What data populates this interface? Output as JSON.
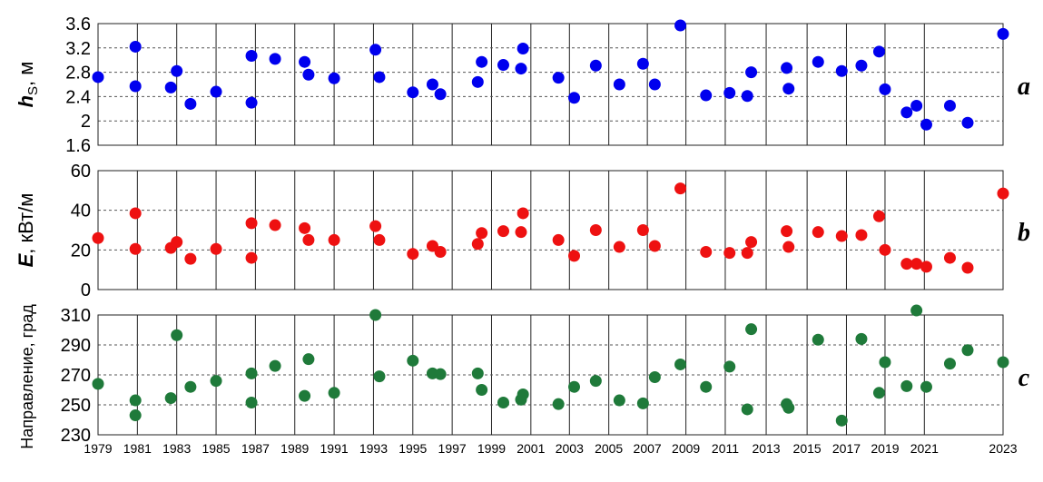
{
  "chart_data": [
    {
      "type": "scatter",
      "panel_letter": "a",
      "ylabel_main": "h",
      "ylabel_sub": "S",
      "ylabel_unit": ", м",
      "ylim": [
        1.6,
        3.6
      ],
      "yticks": [
        1.6,
        2,
        2.4,
        2.8,
        3.2,
        3.6
      ],
      "ytick_labels": [
        "1.6",
        "2",
        "2.4",
        "2.8",
        "3.2",
        "3.6"
      ],
      "color": "#0000ee",
      "points": [
        {
          "x": 1979.0,
          "y": 2.72
        },
        {
          "x": 1980.9,
          "y": 2.57
        },
        {
          "x": 1980.9,
          "y": 3.22
        },
        {
          "x": 1982.7,
          "y": 2.55
        },
        {
          "x": 1983.0,
          "y": 2.82
        },
        {
          "x": 1983.7,
          "y": 2.28
        },
        {
          "x": 1985.0,
          "y": 2.48
        },
        {
          "x": 1986.8,
          "y": 3.07
        },
        {
          "x": 1986.8,
          "y": 2.3
        },
        {
          "x": 1988.0,
          "y": 3.02
        },
        {
          "x": 1989.5,
          "y": 2.97
        },
        {
          "x": 1989.7,
          "y": 2.76
        },
        {
          "x": 1991.0,
          "y": 2.7
        },
        {
          "x": 1993.1,
          "y": 3.17
        },
        {
          "x": 1993.3,
          "y": 2.72
        },
        {
          "x": 1995.0,
          "y": 2.47
        },
        {
          "x": 1996.0,
          "y": 2.6
        },
        {
          "x": 1996.4,
          "y": 2.44
        },
        {
          "x": 1998.3,
          "y": 2.64
        },
        {
          "x": 1998.5,
          "y": 2.97
        },
        {
          "x": 1999.6,
          "y": 2.92
        },
        {
          "x": 2000.5,
          "y": 2.86
        },
        {
          "x": 2000.6,
          "y": 3.19
        },
        {
          "x": 2002.4,
          "y": 2.71
        },
        {
          "x": 2003.2,
          "y": 2.38
        },
        {
          "x": 2004.3,
          "y": 2.91
        },
        {
          "x": 2005.5,
          "y": 2.6
        },
        {
          "x": 2006.7,
          "y": 2.94
        },
        {
          "x": 2007.3,
          "y": 2.6
        },
        {
          "x": 2008.6,
          "y": 3.57
        },
        {
          "x": 2009.9,
          "y": 2.42
        },
        {
          "x": 2011.1,
          "y": 2.46
        },
        {
          "x": 2012.0,
          "y": 2.41
        },
        {
          "x": 2012.2,
          "y": 2.8
        },
        {
          "x": 2014.0,
          "y": 2.87
        },
        {
          "x": 2014.1,
          "y": 2.53
        },
        {
          "x": 2015.6,
          "y": 2.97
        },
        {
          "x": 2016.8,
          "y": 2.82
        },
        {
          "x": 2017.8,
          "y": 2.91
        },
        {
          "x": 2018.7,
          "y": 3.14
        },
        {
          "x": 2019.0,
          "y": 2.52
        },
        {
          "x": 2020.1,
          "y": 2.14
        },
        {
          "x": 2020.6,
          "y": 2.25
        },
        {
          "x": 2021.1,
          "y": 1.94
        },
        {
          "x": 2022.3,
          "y": 2.25
        },
        {
          "x": 2023.2,
          "y": 1.97
        },
        {
          "x": 2025.0,
          "y": 3.43
        }
      ]
    },
    {
      "type": "scatter",
      "panel_letter": "b",
      "ylabel_main": "E",
      "ylabel_unit": ", кВт/м",
      "ylim": [
        0,
        60
      ],
      "yticks": [
        0,
        20,
        40,
        60
      ],
      "ytick_labels": [
        "0",
        "20",
        "40",
        "60"
      ],
      "color": "#ee1111",
      "points": [
        {
          "x": 1979.0,
          "y": 26
        },
        {
          "x": 1980.9,
          "y": 20.5
        },
        {
          "x": 1980.9,
          "y": 38.5
        },
        {
          "x": 1982.7,
          "y": 21
        },
        {
          "x": 1983.0,
          "y": 24
        },
        {
          "x": 1983.7,
          "y": 15.5
        },
        {
          "x": 1985.0,
          "y": 20.5
        },
        {
          "x": 1986.8,
          "y": 33.5
        },
        {
          "x": 1986.8,
          "y": 16
        },
        {
          "x": 1988.0,
          "y": 32.5
        },
        {
          "x": 1989.5,
          "y": 31
        },
        {
          "x": 1989.7,
          "y": 25
        },
        {
          "x": 1991.0,
          "y": 25
        },
        {
          "x": 1993.1,
          "y": 32
        },
        {
          "x": 1993.3,
          "y": 25
        },
        {
          "x": 1995.0,
          "y": 18
        },
        {
          "x": 1996.0,
          "y": 22
        },
        {
          "x": 1996.4,
          "y": 19
        },
        {
          "x": 1998.3,
          "y": 23
        },
        {
          "x": 1998.5,
          "y": 28.5
        },
        {
          "x": 1999.6,
          "y": 29.5
        },
        {
          "x": 2000.5,
          "y": 29
        },
        {
          "x": 2000.6,
          "y": 38.5
        },
        {
          "x": 2002.4,
          "y": 25
        },
        {
          "x": 2003.2,
          "y": 17
        },
        {
          "x": 2004.3,
          "y": 30
        },
        {
          "x": 2005.5,
          "y": 21.5
        },
        {
          "x": 2006.7,
          "y": 30
        },
        {
          "x": 2007.3,
          "y": 22
        },
        {
          "x": 2008.6,
          "y": 51
        },
        {
          "x": 2009.9,
          "y": 19
        },
        {
          "x": 2011.1,
          "y": 18.5
        },
        {
          "x": 2012.0,
          "y": 18.5
        },
        {
          "x": 2012.2,
          "y": 24
        },
        {
          "x": 2014.0,
          "y": 29.5
        },
        {
          "x": 2014.1,
          "y": 21.5
        },
        {
          "x": 2015.6,
          "y": 29
        },
        {
          "x": 2016.8,
          "y": 27
        },
        {
          "x": 2017.8,
          "y": 27.5
        },
        {
          "x": 2018.7,
          "y": 37
        },
        {
          "x": 2019.0,
          "y": 20
        },
        {
          "x": 2020.1,
          "y": 13
        },
        {
          "x": 2020.6,
          "y": 13
        },
        {
          "x": 2021.1,
          "y": 11.5
        },
        {
          "x": 2022.3,
          "y": 16
        },
        {
          "x": 2023.2,
          "y": 11
        },
        {
          "x": 2025.0,
          "y": 48.5
        }
      ]
    },
    {
      "type": "scatter",
      "panel_letter": "c",
      "ylabel": "Направление, град",
      "ylim": [
        230,
        310
      ],
      "yticks": [
        230,
        250,
        270,
        290,
        310
      ],
      "ytick_labels": [
        "230",
        "250",
        "270",
        "290",
        "310"
      ],
      "color": "#1f7a3a",
      "points": [
        {
          "x": 1979.0,
          "y": 264
        },
        {
          "x": 1980.9,
          "y": 243
        },
        {
          "x": 1980.9,
          "y": 253
        },
        {
          "x": 1982.7,
          "y": 254.5
        },
        {
          "x": 1983.0,
          "y": 296.5
        },
        {
          "x": 1983.7,
          "y": 262
        },
        {
          "x": 1985.0,
          "y": 266
        },
        {
          "x": 1986.8,
          "y": 271
        },
        {
          "x": 1986.8,
          "y": 251.5
        },
        {
          "x": 1988.0,
          "y": 276
        },
        {
          "x": 1989.5,
          "y": 256
        },
        {
          "x": 1989.7,
          "y": 280.5
        },
        {
          "x": 1991.0,
          "y": 258
        },
        {
          "x": 1993.1,
          "y": 310
        },
        {
          "x": 1993.3,
          "y": 269
        },
        {
          "x": 1995.0,
          "y": 279.5
        },
        {
          "x": 1996.0,
          "y": 271
        },
        {
          "x": 1996.4,
          "y": 270.5
        },
        {
          "x": 1998.3,
          "y": 271
        },
        {
          "x": 1998.5,
          "y": 260
        },
        {
          "x": 1999.6,
          "y": 251.5
        },
        {
          "x": 2000.5,
          "y": 253.5
        },
        {
          "x": 2000.6,
          "y": 257
        },
        {
          "x": 2002.4,
          "y": 250.5
        },
        {
          "x": 2003.2,
          "y": 262
        },
        {
          "x": 2004.3,
          "y": 266
        },
        {
          "x": 2005.5,
          "y": 253
        },
        {
          "x": 2006.7,
          "y": 251
        },
        {
          "x": 2007.3,
          "y": 268.5
        },
        {
          "x": 2008.6,
          "y": 277
        },
        {
          "x": 2009.9,
          "y": 262
        },
        {
          "x": 2011.1,
          "y": 275.5
        },
        {
          "x": 2012.0,
          "y": 247
        },
        {
          "x": 2012.2,
          "y": 300.5
        },
        {
          "x": 2014.0,
          "y": 250.5
        },
        {
          "x": 2014.1,
          "y": 248
        },
        {
          "x": 2015.6,
          "y": 293.5
        },
        {
          "x": 2016.8,
          "y": 239.5
        },
        {
          "x": 2017.8,
          "y": 294
        },
        {
          "x": 2018.7,
          "y": 258
        },
        {
          "x": 2019.0,
          "y": 278.5
        },
        {
          "x": 2020.1,
          "y": 262.5
        },
        {
          "x": 2020.6,
          "y": 313
        },
        {
          "x": 2021.1,
          "y": 262
        },
        {
          "x": 2022.3,
          "y": 277.5
        },
        {
          "x": 2023.2,
          "y": 286.5
        },
        {
          "x": 2025.0,
          "y": 278.5
        }
      ]
    }
  ],
  "x_axis": {
    "xlim": [
      1979,
      2025
    ],
    "ticks": [
      1979,
      1981,
      1983,
      1985,
      1987,
      1989,
      1991,
      1993,
      1995,
      1997,
      1999,
      2001,
      2003,
      2005,
      2007,
      2009,
      2011,
      2013,
      2015,
      2017,
      2019,
      2021,
      2023
    ],
    "tick_labels": [
      "1979",
      "1981",
      "1983",
      "1985",
      "1987",
      "1989",
      "1991",
      "1993",
      "1995",
      "1997",
      "1999",
      "2001",
      "2003",
      "2005",
      "2007",
      "2009",
      "2011",
      "2013",
      "2015",
      "2017",
      "2019",
      "2021",
      "2023"
    ],
    "tick_positions": [
      1979,
      1981,
      1983,
      1985,
      1987,
      1989,
      1991,
      1993,
      1995,
      1997,
      1999,
      2001,
      2002.96,
      2004.96,
      2006.92,
      2008.88,
      2010.88,
      2012.96,
      2015.04,
      2017.04,
      2019.0,
      2021.0,
      2025.0
    ]
  },
  "grid": true
}
